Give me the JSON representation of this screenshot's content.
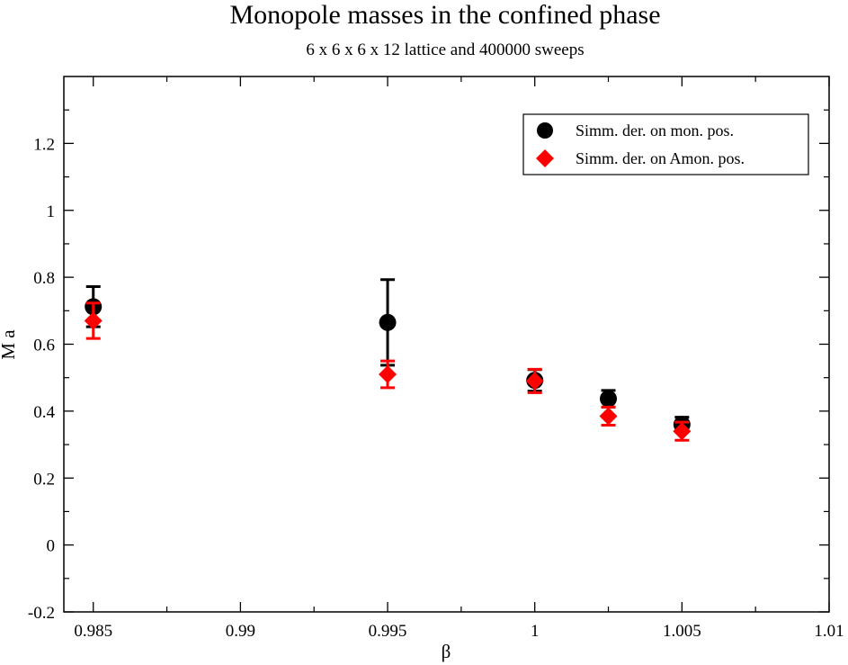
{
  "chart_data": {
    "type": "scatter",
    "title": "Monopole masses in the confined phase",
    "subtitle": "6  x  6 x  6 x 12  lattice  and 400000 sweeps",
    "xlabel": "β",
    "ylabel": "M a",
    "xlim": [
      0.984,
      1.01
    ],
    "ylim": [
      -0.2,
      1.4
    ],
    "x_ticks": [
      0.985,
      0.99,
      0.995,
      1,
      1.005,
      1.01
    ],
    "x_tick_labels": [
      "0.985",
      "0.99",
      "0.995",
      "1",
      "1.005",
      "1.01"
    ],
    "y_ticks": [
      -0.2,
      0,
      0.2,
      0.4,
      0.6,
      0.8,
      1,
      1.2
    ],
    "y_tick_labels": [
      "-0.2",
      "0",
      "0.2",
      "0.4",
      "0.6",
      "0.8",
      "1",
      "1.2"
    ],
    "legend_position": "top-right",
    "series": [
      {
        "name": "Simm. der. on mon. pos.",
        "marker": "circle",
        "color": "#000000",
        "points": [
          {
            "x": 0.985,
            "y": 0.712,
            "err": 0.06
          },
          {
            "x": 0.995,
            "y": 0.665,
            "err": 0.128
          },
          {
            "x": 1.0,
            "y": 0.492,
            "err": 0.032
          },
          {
            "x": 1.0025,
            "y": 0.437,
            "err": 0.025
          },
          {
            "x": 1.005,
            "y": 0.36,
            "err": 0.022
          }
        ]
      },
      {
        "name": "Simm. der. on Amon. pos.",
        "marker": "diamond",
        "color": "#ff0000",
        "points": [
          {
            "x": 0.985,
            "y": 0.67,
            "err": 0.053
          },
          {
            "x": 0.995,
            "y": 0.51,
            "err": 0.04
          },
          {
            "x": 1.0,
            "y": 0.49,
            "err": 0.035
          },
          {
            "x": 1.0025,
            "y": 0.385,
            "err": 0.027
          },
          {
            "x": 1.005,
            "y": 0.34,
            "err": 0.027
          }
        ]
      }
    ]
  }
}
